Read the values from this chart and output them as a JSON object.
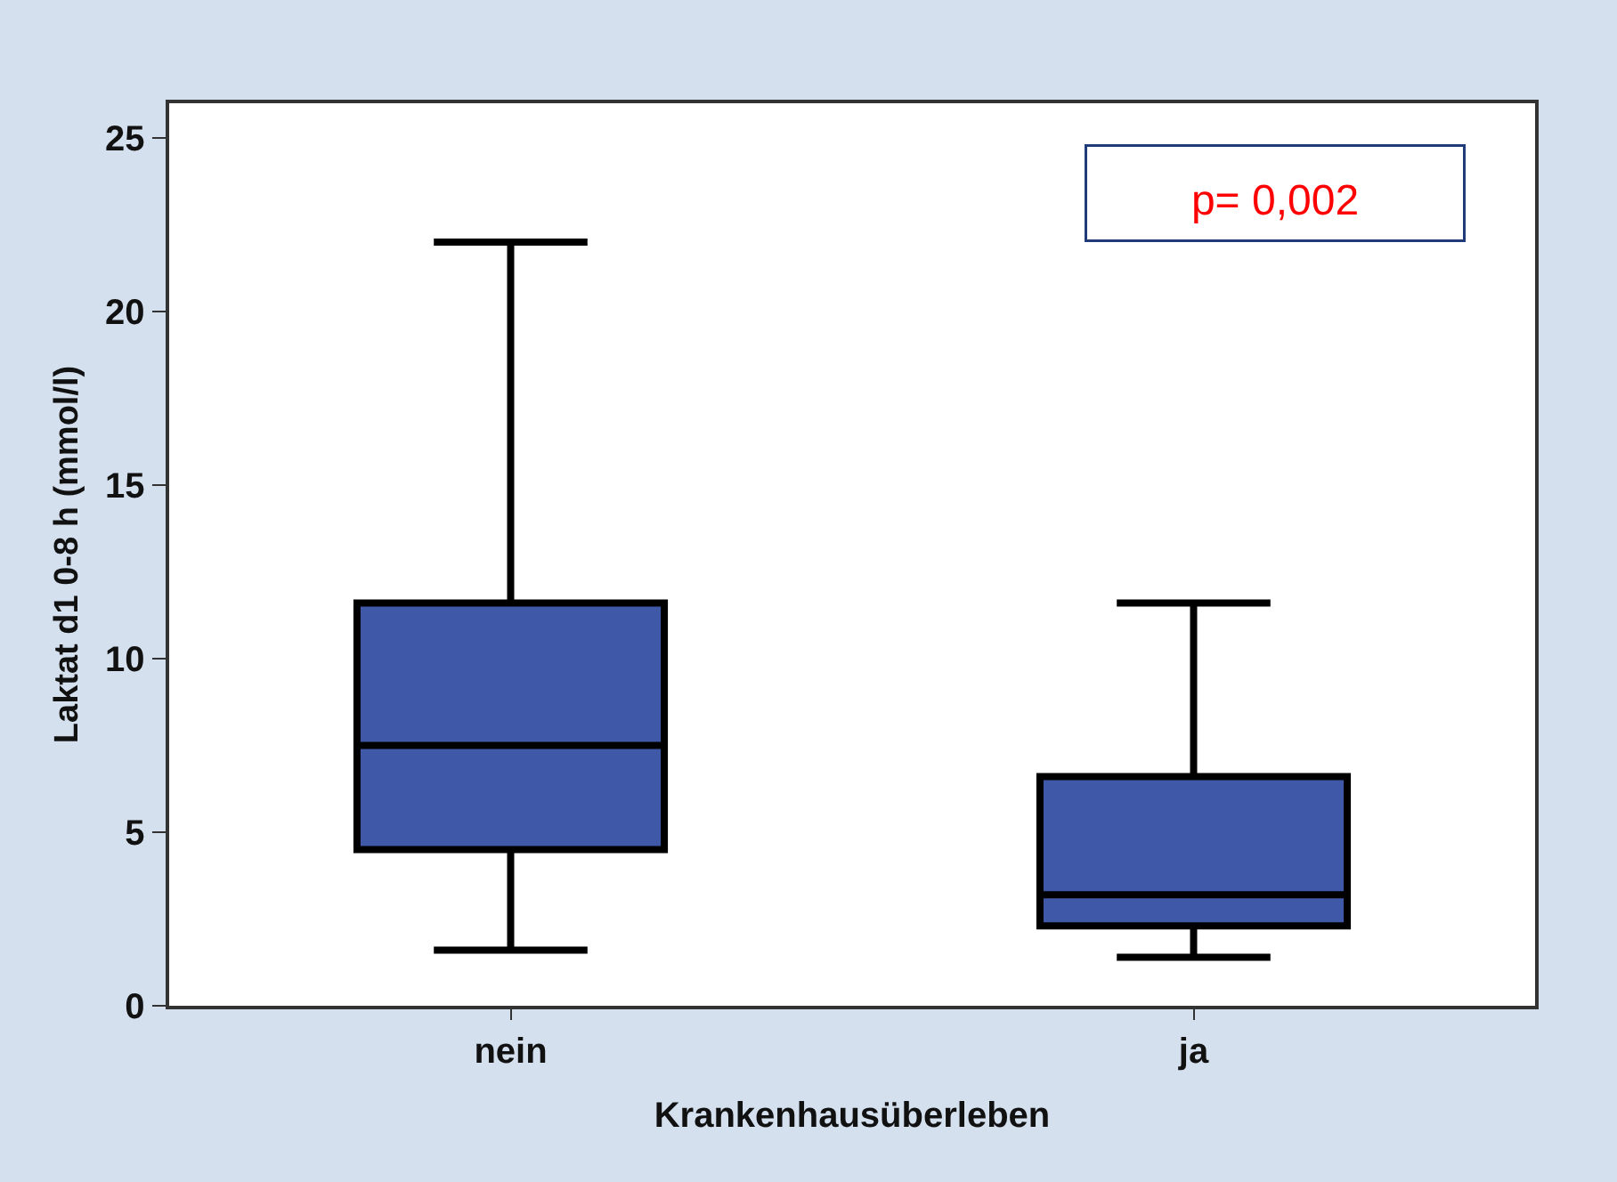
{
  "chart_data": {
    "type": "box",
    "xlabel": "Krankenhausüberleben",
    "ylabel": "Laktat d1 0-8 h (mmol/l)",
    "categories": [
      "nein",
      "ja"
    ],
    "series": [
      {
        "color": "#3f58a8",
        "boxes": [
          {
            "low": 1.6,
            "q1": 4.5,
            "median": 7.5,
            "q3": 11.6,
            "high": 22
          },
          {
            "low": 1.4,
            "q1": 2.3,
            "median": 3.2,
            "q3": 6.6,
            "high": 11.6
          }
        ]
      }
    ],
    "ylim": [
      0,
      26
    ],
    "yticks": [
      0,
      5,
      10,
      15,
      20,
      25
    ],
    "annotations": [
      "p= 0,002"
    ]
  }
}
